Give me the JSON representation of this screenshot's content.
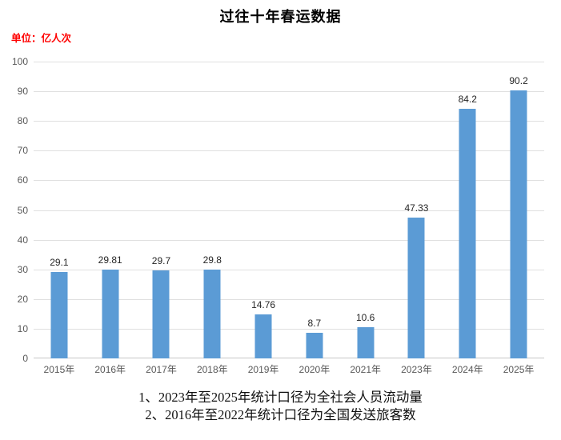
{
  "chart": {
    "title": "过往十年春运数据",
    "unit_label": "单位：亿人次",
    "notes": [
      "1、2023年至2025年统计口径为全社会人员流动量",
      "2、2016年至2022年统计口径为全国发送旅客数"
    ]
  },
  "chart_data": {
    "type": "bar",
    "title": "过往十年春运数据",
    "unit": "亿人次",
    "categories": [
      "2015年",
      "2016年",
      "2017年",
      "2018年",
      "2019年",
      "2020年",
      "2021年",
      "2023年",
      "2024年",
      "2025年"
    ],
    "values": [
      29.1,
      29.81,
      29.7,
      29.8,
      14.76,
      8.7,
      10.6,
      47.33,
      84.2,
      90.2
    ],
    "ylim": [
      0,
      100
    ],
    "yticks": [
      0,
      10,
      20,
      30,
      40,
      50,
      60,
      70,
      80,
      90,
      100
    ],
    "grid": true,
    "legend_position": "none",
    "data_labels_shown": true,
    "annotations": [
      "1、2023年至2025年统计口径为全社会人员流动量",
      "2、2016年至2022年统计口径为全国发送旅客数"
    ],
    "colors": {
      "bar": "#5b9bd5",
      "gridline": "#e0e0e0",
      "axis_line": "#c6c6c6",
      "axis_labels": "#595959",
      "title": "#000000",
      "unit_label": "#ff0000",
      "data_label": "#262626",
      "background": "#ffffff"
    }
  }
}
